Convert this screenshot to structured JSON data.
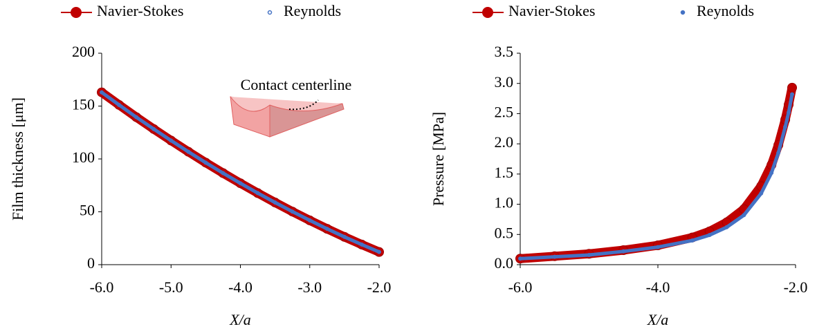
{
  "chart_data": [
    {
      "type": "line",
      "xlabel": "X/a",
      "ylabel": "Film thickness [μm]",
      "annotation": "Contact centerline",
      "legend": "top",
      "x": [
        -6,
        -5.75,
        -5.5,
        -5.25,
        -5,
        -4.75,
        -4.5,
        -4.25,
        -4,
        -3.75,
        -3.5,
        -3.25,
        -3,
        -2.75,
        -2.5,
        -2.25,
        -2
      ],
      "series": [
        {
          "name": "Navier-Stokes",
          "color": "#c00000",
          "line": true,
          "values": [
            163,
            151.1,
            139.5,
            128.3,
            117.4,
            106.8,
            96.5,
            86.6,
            77,
            67.7,
            58.8,
            50.2,
            41.9,
            33.9,
            26.3,
            19,
            12
          ]
        },
        {
          "name": "Reynolds",
          "color": "#4472c4",
          "line": false,
          "values": [
            163,
            151.1,
            139.5,
            128.3,
            117.4,
            106.8,
            96.5,
            86.6,
            77,
            67.7,
            58.8,
            50.2,
            41.9,
            33.9,
            26.3,
            19,
            12
          ]
        }
      ],
      "xlim": [
        -6,
        -2
      ],
      "xticks": [
        {
          "value": -6,
          "label": "-6.0"
        },
        {
          "value": -5,
          "label": "-5.0"
        },
        {
          "value": -4,
          "label": "-4.0"
        },
        {
          "value": -3,
          "label": "-3.0"
        },
        {
          "value": -2,
          "label": "-2.0"
        }
      ],
      "ylim": [
        0,
        200
      ],
      "yticks": [
        0,
        50,
        100,
        150,
        200
      ]
    },
    {
      "type": "line",
      "xlabel": "X/a",
      "ylabel": "Pressure [MPa]",
      "legend": "top",
      "x": [
        -6,
        -5.5,
        -5,
        -4.5,
        -4,
        -3.5,
        -3.25,
        -3,
        -2.75,
        -2.5,
        -2.35,
        -2.25,
        -2.15,
        -2.1,
        -2.05
      ],
      "series": [
        {
          "name": "Navier-Stokes",
          "color": "#c00000",
          "line": true,
          "values": [
            0.1,
            0.14,
            0.18,
            0.24,
            0.32,
            0.45,
            0.55,
            0.7,
            0.92,
            1.3,
            1.65,
            1.98,
            2.4,
            2.65,
            2.93
          ]
        },
        {
          "name": "Reynolds",
          "color": "#4472c4",
          "line": false,
          "values": [
            0.1,
            0.13,
            0.16,
            0.22,
            0.29,
            0.4,
            0.49,
            0.62,
            0.82,
            1.18,
            1.52,
            1.85,
            2.28,
            2.52,
            2.82
          ]
        }
      ],
      "xlim": [
        -6,
        -2
      ],
      "xticks": [
        {
          "value": -6,
          "label": "-6.0"
        },
        {
          "value": -4,
          "label": "-4.0"
        },
        {
          "value": -2,
          "label": "-2.0"
        }
      ],
      "ylim": [
        0,
        3.5
      ],
      "yticks": [
        {
          "value": 0,
          "label": "0.0"
        },
        0.5,
        {
          "value": 1,
          "label": "1.0"
        },
        1.5,
        {
          "value": 2,
          "label": "2.0"
        },
        2.5,
        {
          "value": 3,
          "label": "3.0"
        },
        3.5
      ]
    }
  ]
}
